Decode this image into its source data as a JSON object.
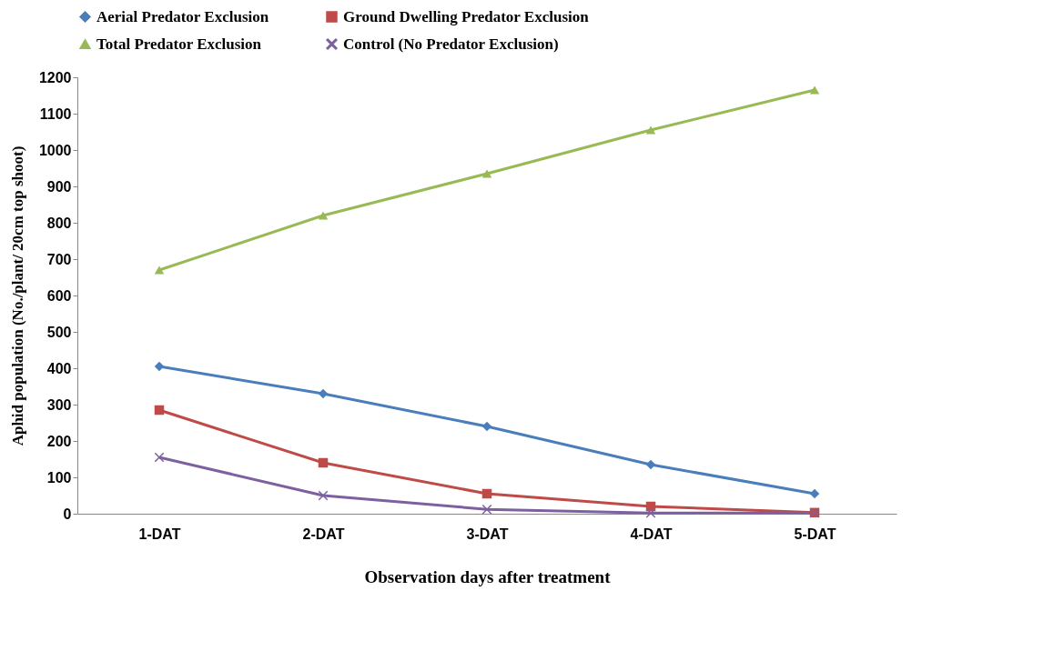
{
  "chart_data": {
    "type": "line",
    "xlabel": "Observation days after treatment",
    "ylabel": "Aphid population (No./plant/ 20cm top shoot)",
    "categories": [
      "1-DAT",
      "2-DAT",
      "3-DAT",
      "4-DAT",
      "5-DAT"
    ],
    "series": [
      {
        "name": "Aerial Predator Exclusion",
        "color": "#4a7ebb",
        "marker": "diamond",
        "values": [
          405,
          330,
          240,
          135,
          55
        ]
      },
      {
        "name": "Ground Dwelling Predator Exclusion",
        "color": "#be4b48",
        "marker": "square",
        "values": [
          285,
          140,
          55,
          20,
          3
        ]
      },
      {
        "name": "Total Predator Exclusion",
        "color": "#98b954",
        "marker": "triangle",
        "values": [
          670,
          820,
          935,
          1055,
          1165
        ]
      },
      {
        "name": "Control (No Predator Exclusion)",
        "color": "#7d60a0",
        "marker": "cross",
        "values": [
          155,
          50,
          12,
          2,
          2
        ]
      }
    ],
    "ylim": [
      0,
      1200
    ],
    "yticks": [
      0,
      100,
      200,
      300,
      400,
      500,
      600,
      700,
      800,
      900,
      1000,
      1100,
      1200
    ],
    "grid": false,
    "legend": "top",
    "line_style": "solid"
  }
}
